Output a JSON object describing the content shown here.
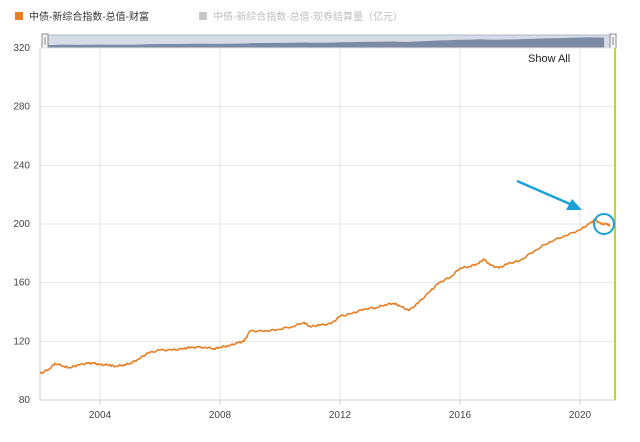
{
  "legend": [
    {
      "label": "中债-新综合指数-总值-财富",
      "color": "#e67e22",
      "active": true
    },
    {
      "label": "中债-新综合指数-总值-现券结算量（亿元）",
      "color": "#c8c8c8",
      "active": false
    }
  ],
  "show_all_label": "Show All",
  "annotation": {
    "arrow_color": "#1aa0d8",
    "circle_color": "#1aa0d8",
    "right_edge_color": "#b8d63a"
  },
  "chart_data": {
    "type": "line",
    "title": "",
    "xlabel": "",
    "ylabel": "",
    "xlim": [
      2002.0,
      2021.2
    ],
    "ylim": [
      80,
      320
    ],
    "y_ticks": [
      80,
      120,
      160,
      200,
      240,
      280,
      320
    ],
    "x_ticks": [
      2004,
      2008,
      2012,
      2016,
      2020
    ],
    "grid": true,
    "series": [
      {
        "name": "中债-新综合指数-总值-财富",
        "color": "#e67e22",
        "x": [
          2002.0,
          2002.3,
          2002.5,
          2002.8,
          2003.0,
          2003.3,
          2003.6,
          2003.8,
          2004.0,
          2004.3,
          2004.5,
          2004.8,
          2005.0,
          2005.3,
          2005.6,
          2006.0,
          2006.4,
          2006.8,
          2007.0,
          2007.5,
          2007.8,
          2008.0,
          2008.3,
          2008.6,
          2008.8,
          2009.0,
          2009.5,
          2009.9,
          2010.4,
          2010.8,
          2011.0,
          2011.3,
          2011.7,
          2012.0,
          2012.4,
          2012.8,
          2013.2,
          2013.5,
          2013.8,
          2014.0,
          2014.3,
          2014.6,
          2015.0,
          2015.3,
          2015.7,
          2016.0,
          2016.3,
          2016.6,
          2016.8,
          2017.0,
          2017.3,
          2017.6,
          2018.0,
          2018.5,
          2019.0,
          2019.5,
          2020.0,
          2020.3,
          2020.5,
          2020.7,
          2020.9,
          2021.0
        ],
        "y": [
          98,
          101,
          105,
          103,
          102,
          104,
          105,
          105,
          104,
          104,
          103,
          104,
          105,
          108,
          112,
          114,
          114,
          115,
          116,
          116,
          115,
          116,
          117,
          119,
          120,
          127,
          127,
          128,
          130,
          133,
          130,
          131,
          132,
          137,
          139,
          142,
          143,
          145,
          146,
          144,
          141,
          146,
          154,
          160,
          164,
          170,
          171,
          173,
          176,
          172,
          170,
          173,
          175,
          182,
          188,
          192,
          196,
          200,
          203,
          200,
          200,
          199
        ]
      }
    ]
  }
}
